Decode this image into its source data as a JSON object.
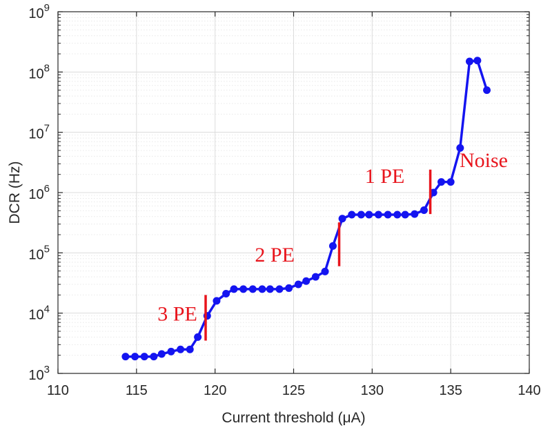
{
  "chart_data": {
    "type": "line",
    "xlabel": "Current threshold (μA)",
    "ylabel": "DCR (Hz)",
    "xlim": [
      110,
      140
    ],
    "ylim": [
      1000,
      1000000000
    ],
    "yscale": "log",
    "grid": true,
    "xticks": [
      110,
      115,
      120,
      125,
      130,
      135,
      140
    ],
    "yticks": [
      {
        "value": 1000,
        "base": "10",
        "exp": "3"
      },
      {
        "value": 10000,
        "base": "10",
        "exp": "4"
      },
      {
        "value": 100000,
        "base": "10",
        "exp": "5"
      },
      {
        "value": 1000000,
        "base": "10",
        "exp": "6"
      },
      {
        "value": 10000000,
        "base": "10",
        "exp": "7"
      },
      {
        "value": 100000000,
        "base": "10",
        "exp": "8"
      },
      {
        "value": 1000000000,
        "base": "10",
        "exp": "9"
      }
    ],
    "series": [
      {
        "color": "#1414f0",
        "x": [
          114.3,
          114.9,
          115.5,
          116.1,
          116.6,
          117.2,
          117.8,
          118.4,
          118.9,
          119.5,
          120.1,
          120.7,
          121.2,
          121.8,
          122.4,
          123.0,
          123.5,
          124.1,
          124.7,
          125.3,
          125.8,
          126.4,
          127.0,
          127.5,
          128.1,
          128.7,
          129.3,
          129.8,
          130.4,
          131.0,
          131.6,
          132.1,
          132.7,
          133.3,
          133.9,
          134.4,
          135.0,
          135.6,
          136.2,
          136.7,
          137.3
        ],
        "y": [
          1900,
          1900,
          1900,
          1900,
          2100,
          2300,
          2500,
          2500,
          4000,
          9000,
          16000,
          21000,
          25000,
          25000,
          25000,
          25000,
          25000,
          25000,
          26000,
          30000,
          34000,
          40000,
          49000,
          130000,
          370000,
          430000,
          430000,
          430000,
          430000,
          430000,
          430000,
          430000,
          440000,
          510000,
          1000000,
          1500000,
          1500000,
          5500000,
          150000000,
          155000000,
          50000000
        ]
      }
    ],
    "markers": [
      {
        "x": 119.4,
        "y_from": 3500,
        "y_to": 20000
      },
      {
        "x": 127.9,
        "y_from": 60000,
        "y_to": 320000
      },
      {
        "x": 133.7,
        "y_from": 440000,
        "y_to": 2400000
      }
    ],
    "annotations": [
      {
        "text": "3 PE",
        "x": 117.6,
        "y": 7500
      },
      {
        "text": "2 PE",
        "x": 123.8,
        "y": 72000
      },
      {
        "text": "1 PE",
        "x": 130.8,
        "y": 1450000
      },
      {
        "text": "Noise",
        "x": 137.1,
        "y": 2650000
      }
    ],
    "colors": {
      "series": "#1414f0",
      "markers": "#e8141c",
      "annotations": "#e8141c"
    }
  }
}
